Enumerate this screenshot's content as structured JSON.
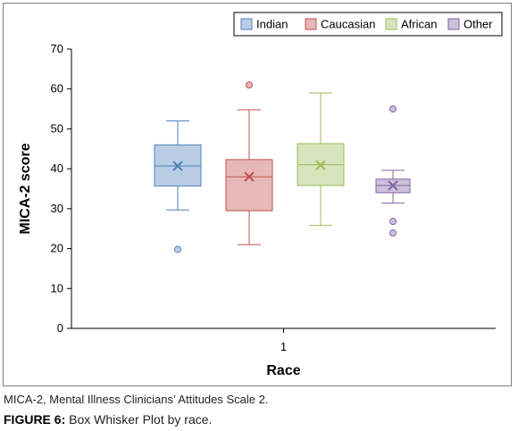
{
  "chart_data": {
    "type": "boxplot",
    "xlabel": "Race",
    "ylabel": "MICA-2 score",
    "ylim": [
      0,
      70
    ],
    "yticks": [
      0,
      10,
      20,
      30,
      40,
      50,
      60,
      70
    ],
    "categories": [
      "1"
    ],
    "legend_position": "top-right",
    "grid": false,
    "series": [
      {
        "name": "Indian",
        "color_fill": "#b9cde5",
        "color_line": "#4f81bd",
        "min": 29.7,
        "q1": 35.7,
        "median": 40.7,
        "q3": 46,
        "max": 52,
        "mean": 40.7,
        "outliers": [
          19.8
        ]
      },
      {
        "name": "Caucasian",
        "color_fill": "#e6b9b8",
        "color_line": "#c0504d",
        "min": 21,
        "q1": 29.5,
        "median": 38,
        "q3": 42.3,
        "max": 54.8,
        "mean": 38,
        "outliers": [
          61
        ]
      },
      {
        "name": "African",
        "color_fill": "#d7e4bd",
        "color_line": "#9bbb59",
        "min": 25.8,
        "q1": 35.8,
        "median": 41,
        "q3": 46.3,
        "max": 59,
        "mean": 40.9,
        "outliers": []
      },
      {
        "name": "Other",
        "color_fill": "#ccc1da",
        "color_line": "#8064a2",
        "min": 31.4,
        "q1": 34,
        "median": 35.8,
        "q3": 37.4,
        "max": 39.6,
        "mean": 35.8,
        "outliers": [
          55,
          26.8,
          23.9
        ]
      }
    ]
  },
  "note": "MICA-2, Mental Illness Clinicians’ Attitudes Scale 2.",
  "caption": {
    "label": "FIGURE 6:",
    "text": " Box Whisker Plot by race."
  }
}
